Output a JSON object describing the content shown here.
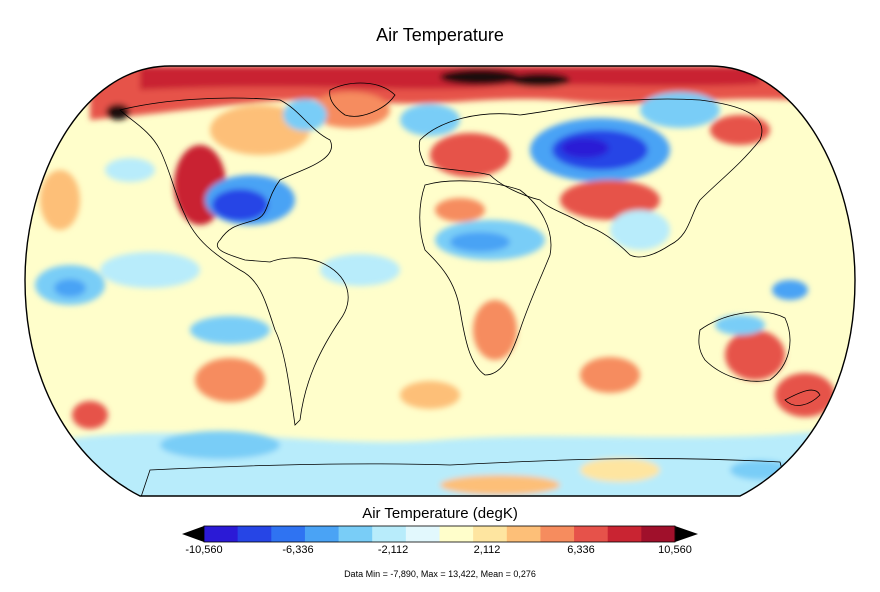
{
  "title": "Air Temperature",
  "legend": {
    "title": "Air Temperature (degK)",
    "ticks": [
      "-10,560",
      "-6,336",
      "-2,112",
      "2,112",
      "6,336",
      "10,560"
    ],
    "colors": [
      "#2b1ad6",
      "#2645e6",
      "#2f73f2",
      "#4aa3f5",
      "#79cdf7",
      "#b8ecfb",
      "#e2f8fd",
      "#fffecb",
      "#fee5a0",
      "#fdbf78",
      "#f68c5e",
      "#e6524a",
      "#c92432",
      "#a0102b"
    ],
    "extend": "both"
  },
  "stats": "Data Min = -7,890, Max = 13,422, Mean = 0,276",
  "map": {
    "projection": "Robinson",
    "ocean_base_color": "#fffecb",
    "outline_color": "#000000"
  }
}
